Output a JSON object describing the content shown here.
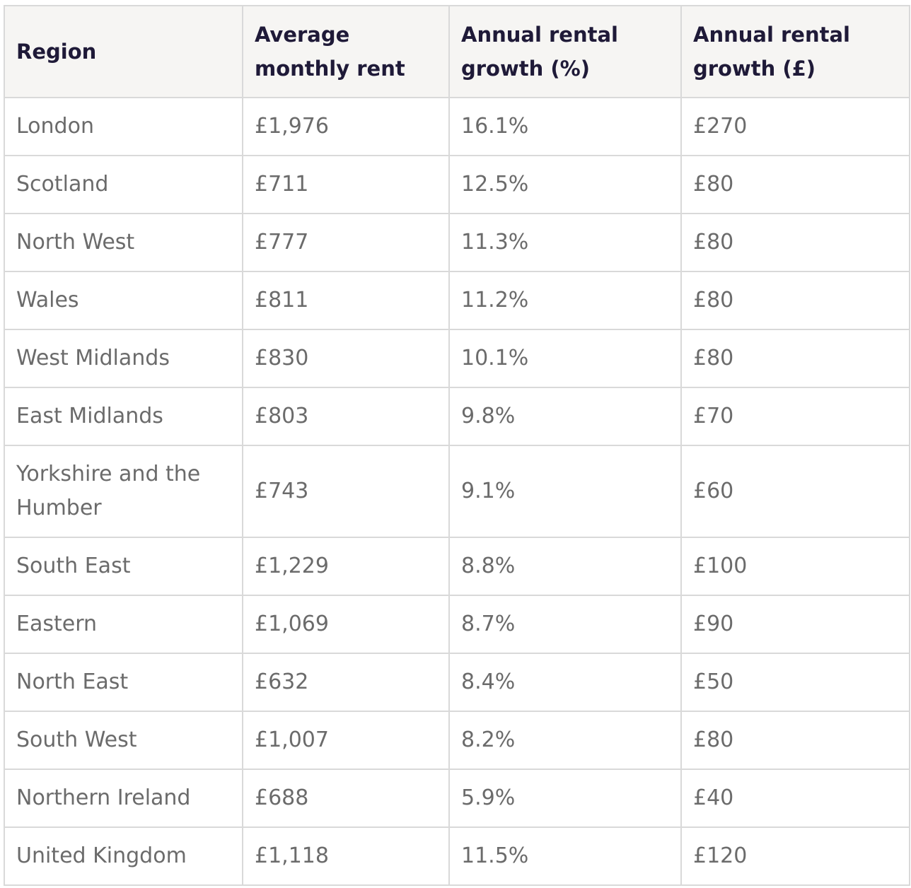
{
  "table": {
    "headers": [
      "Region",
      "Average monthly rent",
      "Annual rental growth (%)",
      "Annual rental growth (£)"
    ],
    "rows": [
      [
        "London",
        "£1,976",
        "16.1%",
        "£270"
      ],
      [
        "Scotland",
        "£711",
        "12.5%",
        "£80"
      ],
      [
        "North West",
        "£777",
        "11.3%",
        "£80"
      ],
      [
        "Wales",
        "£811",
        "11.2%",
        "£80"
      ],
      [
        "West Midlands",
        "£830",
        "10.1%",
        "£80"
      ],
      [
        "East Midlands",
        "£803",
        "9.8%",
        "£70"
      ],
      [
        "Yorkshire and the Humber",
        "£743",
        "9.1%",
        "£60"
      ],
      [
        "South East",
        "£1,229",
        "8.8%",
        "£100"
      ],
      [
        "Eastern",
        "£1,069",
        "8.7%",
        "£90"
      ],
      [
        "North East",
        "£632",
        "8.4%",
        "£50"
      ],
      [
        "South West",
        "£1,007",
        "8.2%",
        "£80"
      ],
      [
        "Northern Ireland",
        "£688",
        "5.9%",
        "£40"
      ],
      [
        "United Kingdom",
        "£1,118",
        "11.5%",
        "£120"
      ]
    ]
  }
}
